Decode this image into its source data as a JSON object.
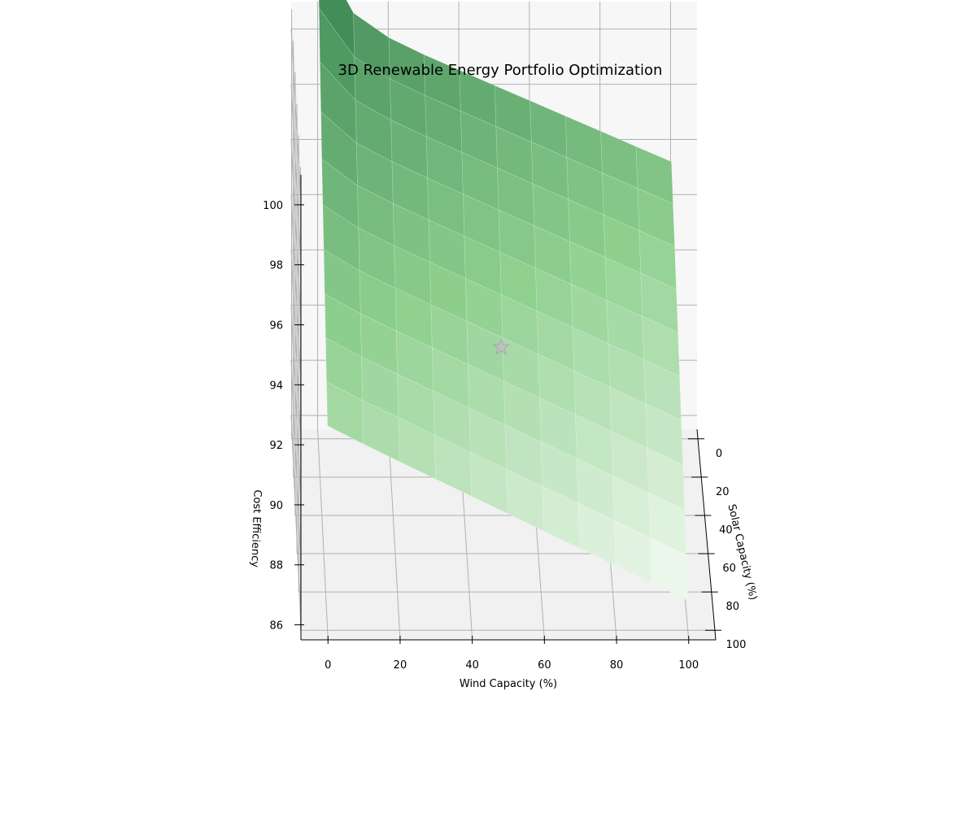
{
  "chart_data": {
    "type": "surface3d",
    "title": "3D Renewable Energy Portfolio Optimization",
    "xlabel": "Wind Capacity (%)",
    "ylabel": "Solar Capacity (%)",
    "zlabel": "Cost Efficiency",
    "x_ticks": [
      "0",
      "20",
      "40",
      "60",
      "80",
      "100"
    ],
    "y_ticks": [
      "0",
      "20",
      "40",
      "60",
      "80",
      "100"
    ],
    "z_ticks": [
      "86",
      "88",
      "90",
      "92",
      "94",
      "96",
      "98",
      "100"
    ],
    "xlim": [
      -7.5,
      107.5
    ],
    "ylim": [
      -5,
      105
    ],
    "zlim": [
      85.5,
      101
    ],
    "grid": true,
    "colormap": "Greens",
    "colors": {
      "dark": "#2f7d4b",
      "mid": "#8fd08f",
      "light": "#f5fbf4",
      "marker": "#bfbfbf",
      "pane": "#f2f2f2",
      "grid": "#b0b0b0"
    },
    "surface": {
      "x": [
        0,
        10,
        20,
        30,
        40,
        50,
        60,
        70,
        80,
        90,
        100
      ],
      "y": [
        0,
        10,
        20,
        30,
        40,
        50,
        60,
        70,
        80,
        90,
        100
      ],
      "z_corners": {
        "x0_y0": 101.0,
        "x100_y0": 95.5,
        "x0_y100": 92.3,
        "x100_y100": 86.5
      }
    },
    "optimal_point": {
      "x": 50,
      "y": 50,
      "z": 92.0,
      "marker": "star-icon"
    }
  }
}
